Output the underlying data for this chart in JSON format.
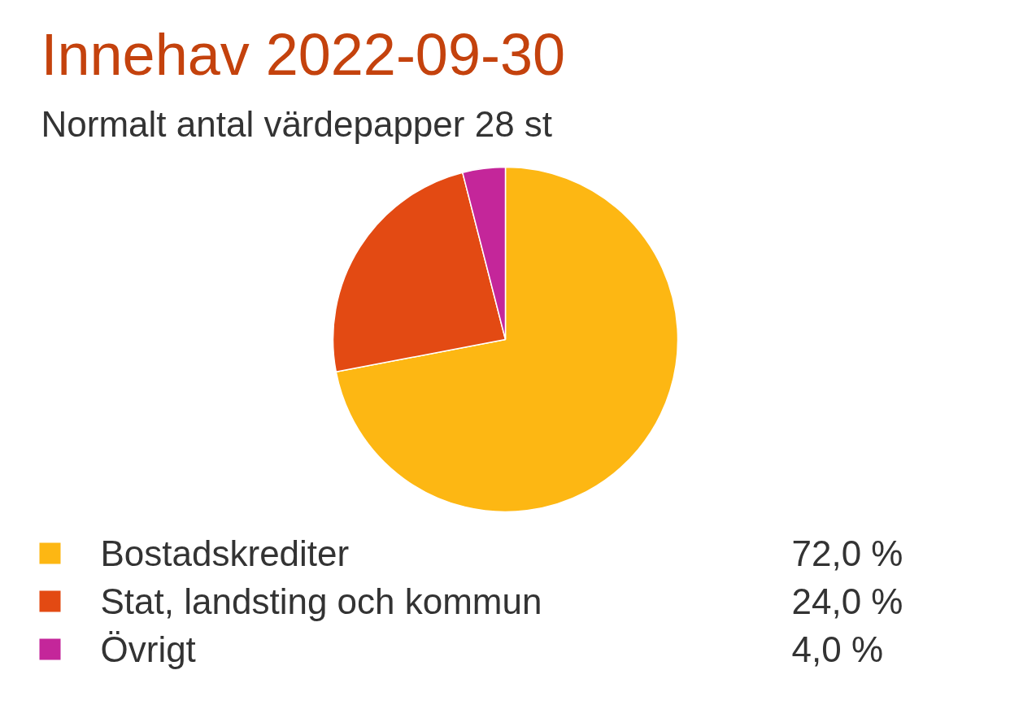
{
  "chart_data": {
    "type": "pie",
    "title": "Innehav 2022-09-30",
    "subtitle": "Normalt antal värdepapper 28 st",
    "categories": [
      "Bostadskrediter",
      "Stat, landsting och kommun",
      "Övrigt"
    ],
    "values": [
      72,
      24,
      4
    ],
    "colors": [
      "#fdb713",
      "#e34a13",
      "#c4269a"
    ],
    "value_labels": [
      "72,0 %",
      "24,0 %",
      "4,0 %"
    ],
    "legend": "bottom"
  }
}
